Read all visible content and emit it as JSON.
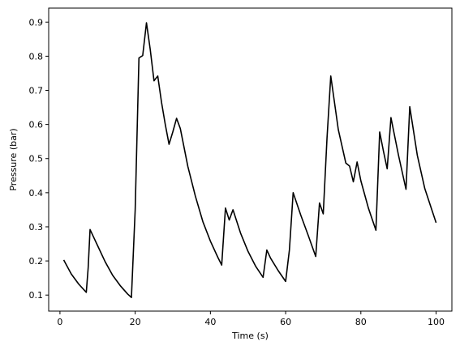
{
  "chart_data": {
    "type": "line",
    "xlabel": "Time (s)",
    "ylabel": "Pressure (bar)",
    "xlim": [
      -3,
      104.2
    ],
    "ylim": [
      0.053,
      0.941
    ],
    "xticks": [
      0,
      20,
      40,
      60,
      80,
      100
    ],
    "yticks": [
      0.1,
      0.2,
      0.3,
      0.4,
      0.5,
      0.6,
      0.7,
      0.8,
      0.9
    ],
    "xtick_labels": [
      "0",
      "20",
      "40",
      "60",
      "80",
      "100"
    ],
    "ytick_labels": [
      "0.1",
      "0.2",
      "0.3",
      "0.4",
      "0.5",
      "0.6",
      "0.7",
      "0.8",
      "0.9"
    ],
    "grid": false,
    "line_color": "#000000",
    "series": [
      {
        "x": [
          1,
          3,
          5,
          7,
          7.5,
          8,
          10,
          12,
          14,
          16,
          18,
          19,
          20,
          21,
          22,
          23,
          24,
          25,
          26,
          27,
          28,
          29,
          30,
          31,
          32,
          34,
          36,
          38,
          40,
          42,
          43,
          44,
          45,
          46,
          48,
          50,
          52,
          54,
          55,
          56,
          58,
          60,
          61,
          62,
          64,
          66,
          68,
          69,
          70,
          71,
          72,
          74,
          76,
          77,
          78,
          79,
          80,
          82,
          84,
          85,
          86,
          87,
          88,
          90,
          92,
          93,
          95,
          97,
          100
        ],
        "y": [
          0.203,
          0.162,
          0.132,
          0.108,
          0.18,
          0.292,
          0.245,
          0.198,
          0.158,
          0.128,
          0.103,
          0.093,
          0.35,
          0.795,
          0.802,
          0.898,
          0.82,
          0.728,
          0.742,
          0.665,
          0.6,
          0.542,
          0.578,
          0.618,
          0.588,
          0.477,
          0.39,
          0.315,
          0.258,
          0.21,
          0.188,
          0.355,
          0.32,
          0.35,
          0.282,
          0.228,
          0.185,
          0.152,
          0.232,
          0.208,
          0.172,
          0.14,
          0.232,
          0.4,
          0.335,
          0.275,
          0.213,
          0.37,
          0.338,
          0.56,
          0.742,
          0.585,
          0.487,
          0.478,
          0.432,
          0.49,
          0.435,
          0.355,
          0.29,
          0.578,
          0.522,
          0.47,
          0.62,
          0.51,
          0.41,
          0.652,
          0.51,
          0.412,
          0.312
        ]
      }
    ]
  }
}
